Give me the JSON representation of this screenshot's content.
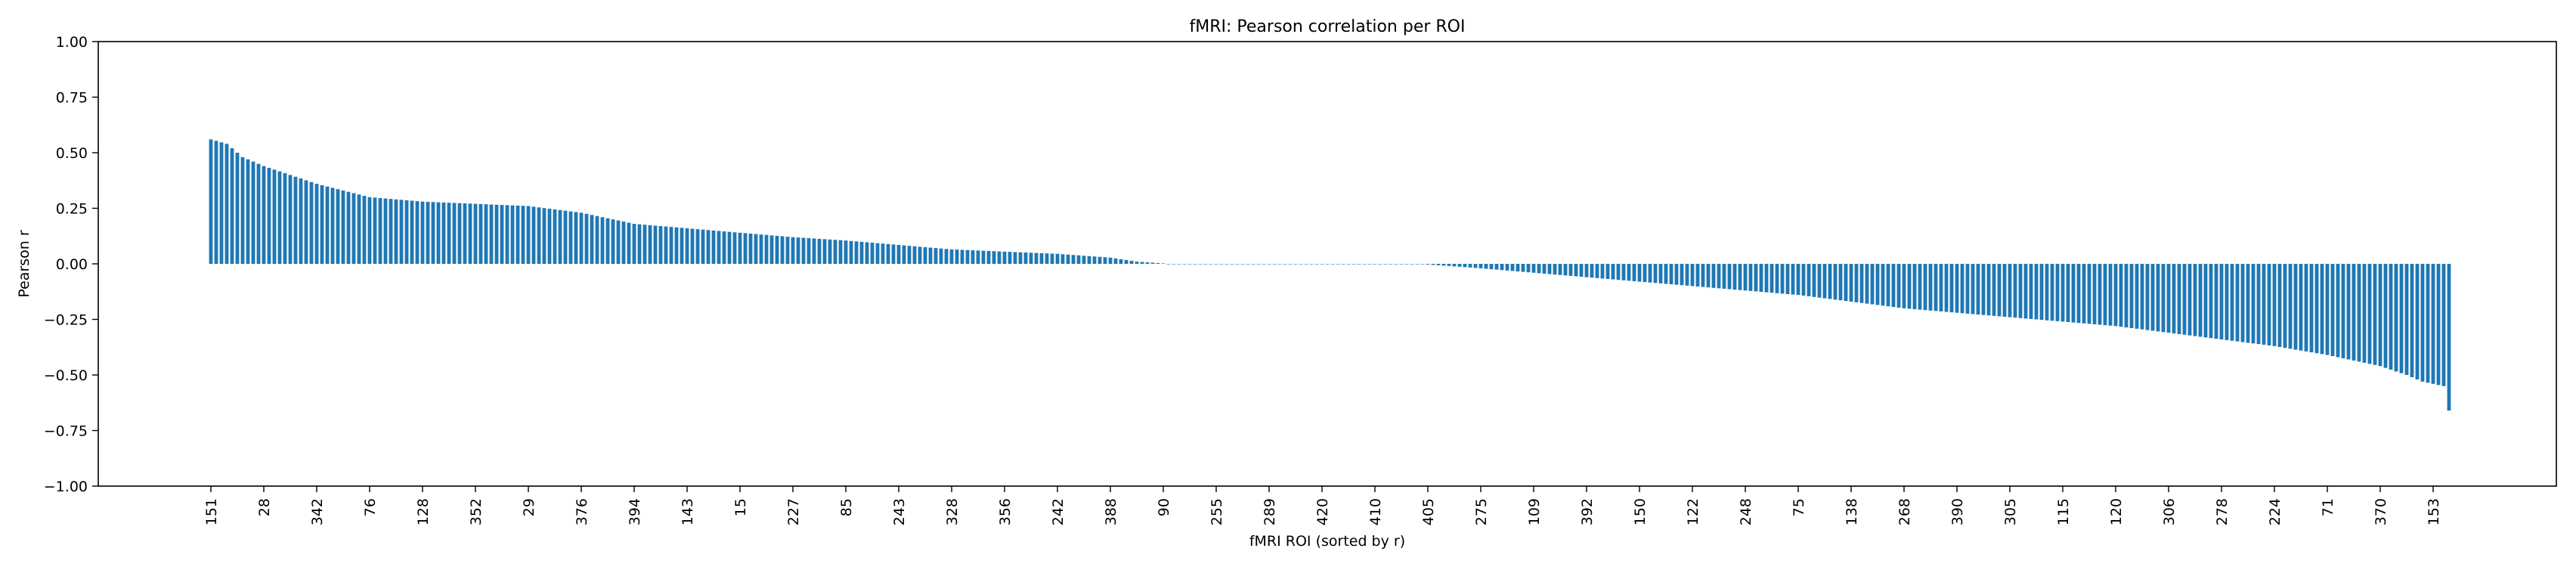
{
  "chart_data": {
    "type": "bar",
    "title": "fMRI: Pearson correlation per ROI",
    "xlabel": "fMRI ROI (sorted by r)",
    "ylabel": "Pearson r",
    "ylim": [
      -1.0,
      1.0
    ],
    "yticks": [
      "−1.00",
      "−0.75",
      "−0.50",
      "−0.25",
      "0.00",
      "0.25",
      "0.50",
      "0.75",
      "1.00"
    ],
    "ytick_values": [
      -1.0,
      -0.75,
      -0.5,
      -0.25,
      0.0,
      0.25,
      0.5,
      0.75,
      1.0
    ],
    "n_rois": 424,
    "xtick_step": 10,
    "xtick_labels": [
      "151",
      "28",
      "342",
      "76",
      "128",
      "352",
      "29",
      "376",
      "394",
      "143",
      "15",
      "227",
      "85",
      "243",
      "328",
      "356",
      "242",
      "388",
      "90",
      "255",
      "289",
      "420",
      "410",
      "405",
      "275",
      "109",
      "392",
      "150",
      "122",
      "248",
      "75",
      "138",
      "268",
      "390",
      "305",
      "115",
      "120",
      "306",
      "278",
      "224",
      "71",
      "370",
      "153"
    ],
    "bar_color": "#1f77b4",
    "grid": false,
    "legend": "none",
    "series_anchors": [
      [
        0,
        0.56
      ],
      [
        3,
        0.54
      ],
      [
        6,
        0.48
      ],
      [
        10,
        0.44
      ],
      [
        15,
        0.4
      ],
      [
        20,
        0.36
      ],
      [
        25,
        0.33
      ],
      [
        30,
        0.3
      ],
      [
        35,
        0.29
      ],
      [
        40,
        0.28
      ],
      [
        50,
        0.27
      ],
      [
        60,
        0.26
      ],
      [
        70,
        0.23
      ],
      [
        80,
        0.18
      ],
      [
        90,
        0.16
      ],
      [
        100,
        0.14
      ],
      [
        110,
        0.12
      ],
      [
        120,
        0.105
      ],
      [
        130,
        0.085
      ],
      [
        140,
        0.065
      ],
      [
        150,
        0.055
      ],
      [
        160,
        0.045
      ],
      [
        170,
        0.028
      ],
      [
        175,
        0.01
      ],
      [
        180,
        0.002
      ],
      [
        181,
        0.0
      ],
      [
        229,
        0.0
      ],
      [
        230,
        -0.003
      ],
      [
        240,
        -0.02
      ],
      [
        250,
        -0.04
      ],
      [
        260,
        -0.06
      ],
      [
        270,
        -0.08
      ],
      [
        280,
        -0.1
      ],
      [
        290,
        -0.12
      ],
      [
        300,
        -0.14
      ],
      [
        310,
        -0.17
      ],
      [
        320,
        -0.2
      ],
      [
        330,
        -0.22
      ],
      [
        340,
        -0.24
      ],
      [
        350,
        -0.26
      ],
      [
        360,
        -0.28
      ],
      [
        370,
        -0.31
      ],
      [
        380,
        -0.34
      ],
      [
        390,
        -0.37
      ],
      [
        400,
        -0.41
      ],
      [
        410,
        -0.46
      ],
      [
        415,
        -0.5
      ],
      [
        418,
        -0.53
      ],
      [
        422,
        -0.55
      ],
      [
        423,
        -0.66
      ]
    ]
  }
}
